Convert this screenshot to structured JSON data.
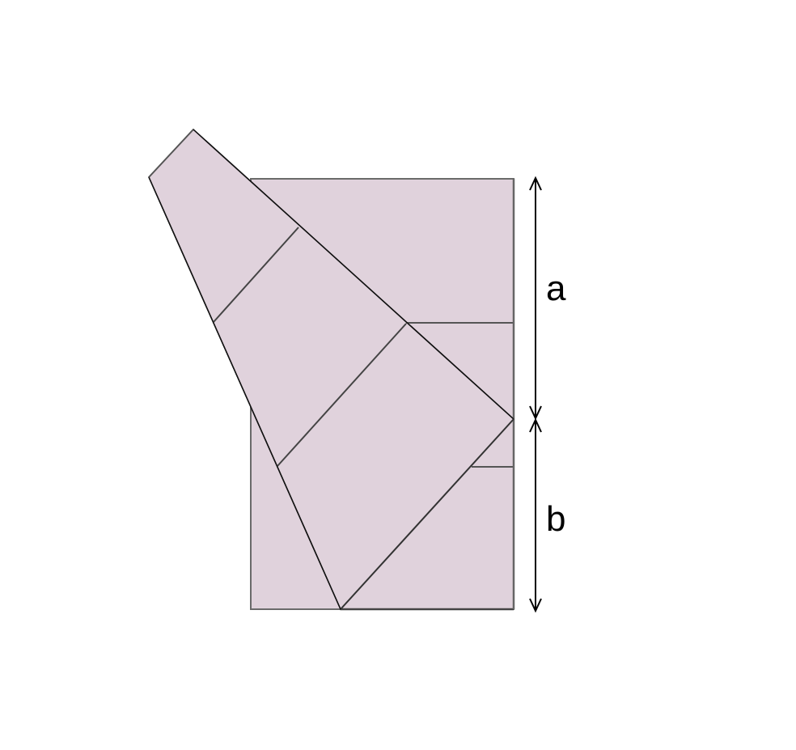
{
  "labels": {
    "a": "a",
    "b": "b"
  },
  "colors": {
    "fill": "#e0d2dc",
    "edge": "#555555",
    "stroke": "#000000",
    "background": "#ffffff"
  }
}
